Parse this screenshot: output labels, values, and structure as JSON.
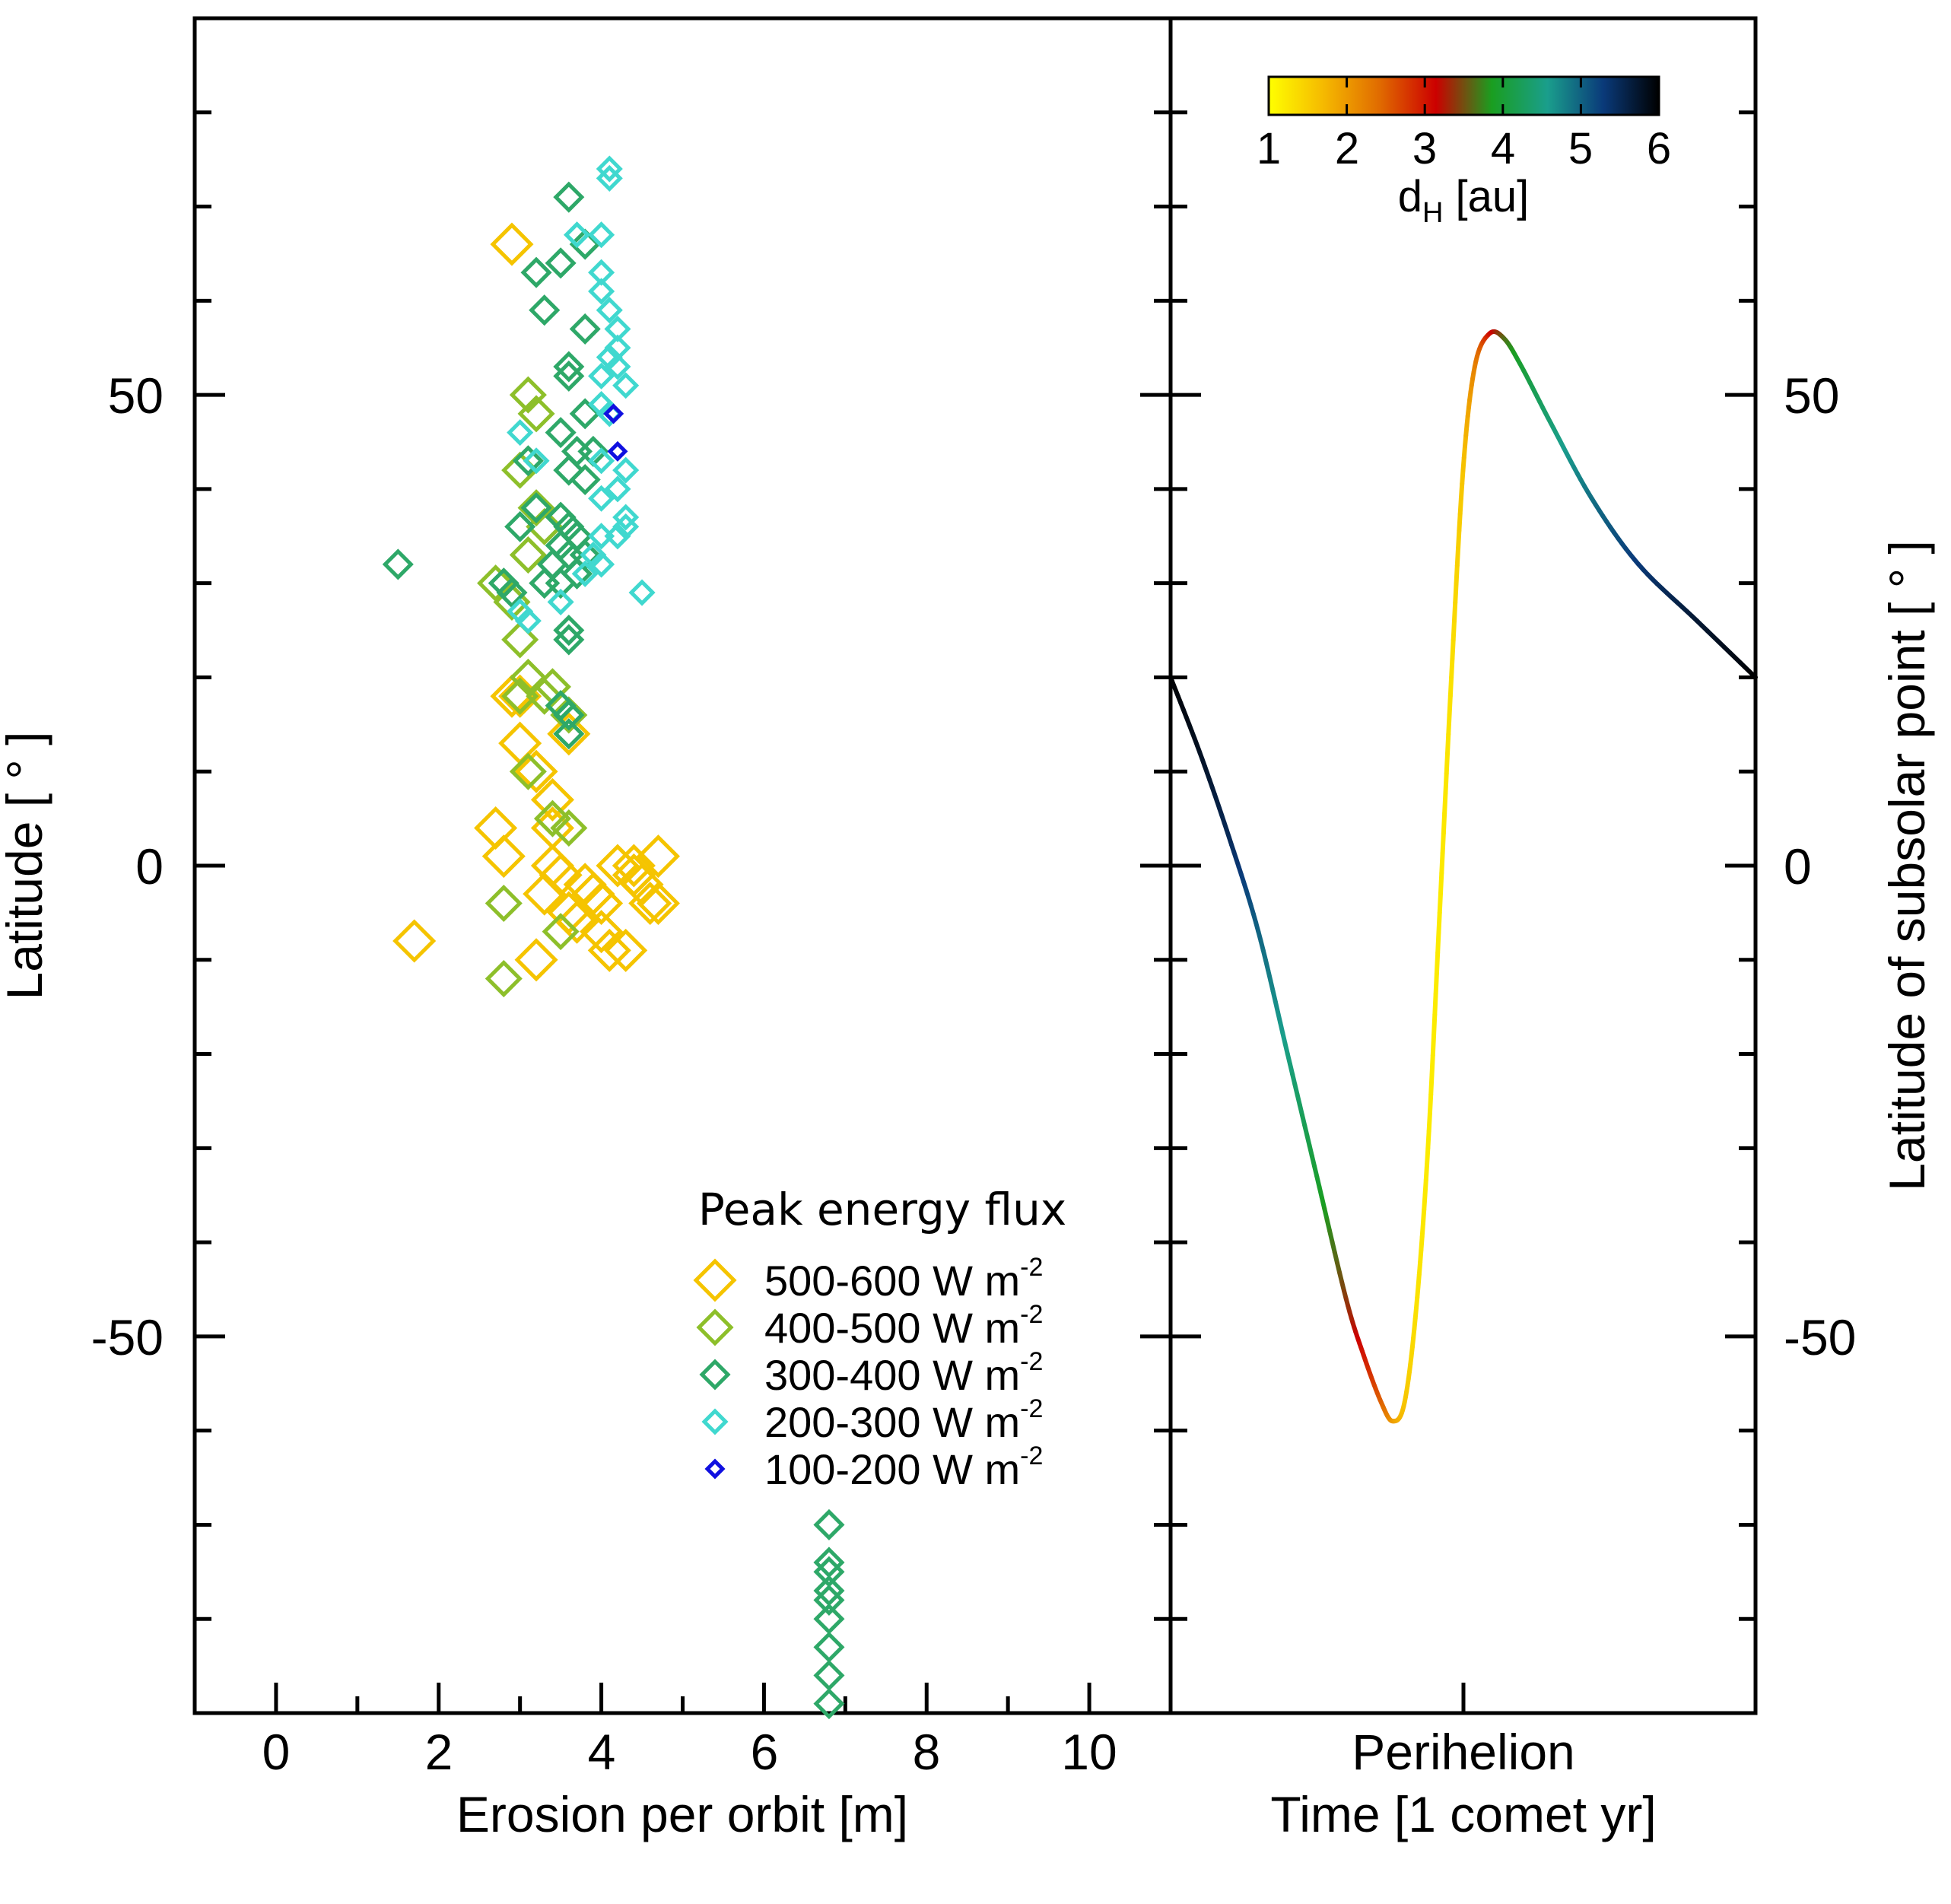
{
  "chart_data": [
    {
      "type": "scatter",
      "xlabel": "Erosion per orbit [m]",
      "ylabel": "Latitude [ ° ]",
      "xlim": [
        -1,
        11
      ],
      "ylim": [
        -90,
        90
      ],
      "x_ticks": [
        "0",
        "2",
        "4",
        "6",
        "8",
        "10"
      ],
      "y_ticks": [
        "50",
        "0",
        "-50"
      ],
      "legend": {
        "title": "Peak energy flux",
        "position": "bottom-right",
        "entries": [
          {
            "label": "500-600 W m",
            "superscript": "-2",
            "color": "#f5c400"
          },
          {
            "label": "400-500 W m",
            "superscript": "-2",
            "color": "#8dbf2a"
          },
          {
            "label": "300-400 W m",
            "superscript": "-2",
            "color": "#2ea868"
          },
          {
            "label": "200-300 W m",
            "superscript": "-2",
            "color": "#40d8cf"
          },
          {
            "label": "100-200 W m",
            "superscript": "-2",
            "color": "#1010e0"
          }
        ]
      },
      "series": [
        {
          "name": "500-600 W m-2",
          "points": [
            [
              2.9,
              66
            ],
            [
              2.9,
              18
            ],
            [
              3.0,
              18
            ],
            [
              3.0,
              13
            ],
            [
              3.2,
              10
            ],
            [
              3.4,
              7
            ],
            [
              3.4,
              4
            ],
            [
              3.6,
              14
            ],
            [
              2.7,
              4
            ],
            [
              2.8,
              1
            ],
            [
              1.7,
              -8
            ],
            [
              3.2,
              -10
            ],
            [
              3.3,
              -3
            ],
            [
              3.5,
              -1
            ],
            [
              3.8,
              -2
            ],
            [
              3.6,
              -5
            ],
            [
              4.0,
              -4
            ],
            [
              3.7,
              -6
            ],
            [
              4.0,
              -7
            ],
            [
              4.1,
              -9
            ],
            [
              4.3,
              -9
            ],
            [
              4.2,
              0
            ],
            [
              4.4,
              0
            ],
            [
              4.4,
              -1
            ],
            [
              4.5,
              -2
            ],
            [
              4.7,
              1
            ],
            [
              4.6,
              -4
            ],
            [
              4.7,
              -4
            ],
            [
              3.4,
              0
            ],
            [
              3.9,
              -3
            ]
          ]
        },
        {
          "name": "400-500 W m-2",
          "points": [
            [
              3.1,
              50
            ],
            [
              3.2,
              48
            ],
            [
              3.0,
              42
            ],
            [
              3.2,
              38
            ],
            [
              3.3,
              36
            ],
            [
              3.1,
              33
            ],
            [
              2.7,
              30
            ],
            [
              2.9,
              28
            ],
            [
              3.0,
              24
            ],
            [
              3.1,
              20
            ],
            [
              3.3,
              18
            ],
            [
              3.4,
              19
            ],
            [
              3.0,
              18
            ],
            [
              3.6,
              16
            ],
            [
              3.1,
              10
            ],
            [
              3.4,
              5
            ],
            [
              3.6,
              4
            ],
            [
              3.5,
              -7
            ],
            [
              2.8,
              -4
            ],
            [
              2.8,
              -12
            ]
          ]
        },
        {
          "name": "300-400 W m-2",
          "points": [
            [
              3.6,
              71
            ],
            [
              3.8,
              66
            ],
            [
              3.2,
              63
            ],
            [
              3.5,
              64
            ],
            [
              3.3,
              59
            ],
            [
              3.8,
              57
            ],
            [
              3.6,
              53
            ],
            [
              3.6,
              52
            ],
            [
              3.8,
              48
            ],
            [
              3.5,
              46
            ],
            [
              3.7,
              44
            ],
            [
              3.9,
              44
            ],
            [
              3.6,
              42
            ],
            [
              3.8,
              41
            ],
            [
              3.2,
              38
            ],
            [
              3.5,
              37
            ],
            [
              3.6,
              36
            ],
            [
              3.7,
              35
            ],
            [
              3.5,
              34
            ],
            [
              3.6,
              33
            ],
            [
              3.8,
              33
            ],
            [
              3.4,
              32
            ],
            [
              3.7,
              31
            ],
            [
              3.3,
              30
            ],
            [
              3.5,
              30
            ],
            [
              3.0,
              36
            ],
            [
              3.1,
              43
            ],
            [
              2.9,
              29
            ],
            [
              2.8,
              30
            ],
            [
              3.6,
              25
            ],
            [
              3.6,
              24
            ],
            [
              3.5,
              17
            ],
            [
              3.6,
              16
            ],
            [
              3.6,
              14
            ],
            [
              1.5,
              32
            ],
            [
              6.8,
              -70
            ],
            [
              6.8,
              -74
            ],
            [
              6.8,
              -75
            ],
            [
              6.8,
              -77
            ],
            [
              6.8,
              -78
            ],
            [
              6.8,
              -80
            ],
            [
              6.8,
              -83
            ],
            [
              6.8,
              -86
            ],
            [
              6.8,
              -89
            ]
          ]
        },
        {
          "name": "200-300 W m-2",
          "points": [
            [
              4.1,
              74
            ],
            [
              4.1,
              73
            ],
            [
              3.7,
              67
            ],
            [
              4.0,
              67
            ],
            [
              4.0,
              63
            ],
            [
              4.0,
              61
            ],
            [
              4.1,
              59
            ],
            [
              4.2,
              57
            ],
            [
              4.2,
              55
            ],
            [
              4.1,
              54
            ],
            [
              4.2,
              53
            ],
            [
              4.0,
              52
            ],
            [
              4.3,
              51
            ],
            [
              4.0,
              49
            ],
            [
              4.1,
              48
            ],
            [
              3.0,
              46
            ],
            [
              3.2,
              43
            ],
            [
              4.0,
              43
            ],
            [
              4.3,
              42
            ],
            [
              4.2,
              40
            ],
            [
              4.0,
              39
            ],
            [
              4.3,
              37
            ],
            [
              4.3,
              36
            ],
            [
              4.2,
              35
            ],
            [
              4.0,
              35
            ],
            [
              3.9,
              33
            ],
            [
              4.0,
              32
            ],
            [
              3.8,
              31
            ],
            [
              4.5,
              29
            ],
            [
              3.5,
              28
            ],
            [
              3.0,
              27
            ],
            [
              3.1,
              26
            ]
          ]
        },
        {
          "name": "100-200 W m-2",
          "points": [
            [
              4.15,
              48
            ],
            [
              4.2,
              44
            ]
          ]
        }
      ]
    },
    {
      "type": "line",
      "xlabel": "Time [1 comet yr]",
      "x_tick_label": "Perihelion",
      "ylabel": "Latitude of subsolar point [ ° ]",
      "ylim": [
        -90,
        90
      ],
      "y_ticks": [
        "50",
        "0",
        "-50"
      ],
      "colorbar": {
        "label": "d",
        "label_sub": "H",
        "label_suffix": " [au]",
        "range": [
          1,
          6
        ],
        "ticks": [
          "1",
          "2",
          "3",
          "4",
          "5",
          "6"
        ],
        "colors": [
          "#ffff00",
          "#f5b800",
          "#e06a00",
          "#cc0000",
          "#1a9e20",
          "#1a9e8c",
          "#0a3a7a",
          "#000000"
        ]
      },
      "series": [
        {
          "name": "subsolar latitude",
          "points": [
            [
              0.0,
              20,
              6.0
            ],
            [
              0.05,
              12,
              5.8
            ],
            [
              0.1,
              3,
              5.5
            ],
            [
              0.15,
              -7,
              5.0
            ],
            [
              0.2,
              -20,
              4.5
            ],
            [
              0.25,
              -33,
              4.0
            ],
            [
              0.3,
              -46,
              3.4
            ],
            [
              0.33,
              -52,
              3.0
            ],
            [
              0.36,
              -57,
              2.5
            ],
            [
              0.38,
              -59,
              2.0
            ],
            [
              0.4,
              -57,
              1.6
            ],
            [
              0.42,
              -47,
              1.3
            ],
            [
              0.44,
              -30,
              1.2
            ],
            [
              0.46,
              -5,
              1.2
            ],
            [
              0.48,
              20,
              1.3
            ],
            [
              0.5,
              42,
              1.6
            ],
            [
              0.52,
              53,
              2.2
            ],
            [
              0.545,
              56.5,
              3.0
            ],
            [
              0.57,
              56,
              3.6
            ],
            [
              0.6,
              53,
              4.0
            ],
            [
              0.65,
              47,
              4.4
            ],
            [
              0.72,
              39,
              4.9
            ],
            [
              0.8,
              32,
              5.3
            ],
            [
              0.9,
              26,
              5.7
            ],
            [
              1.0,
              20,
              6.0
            ]
          ]
        }
      ]
    }
  ]
}
